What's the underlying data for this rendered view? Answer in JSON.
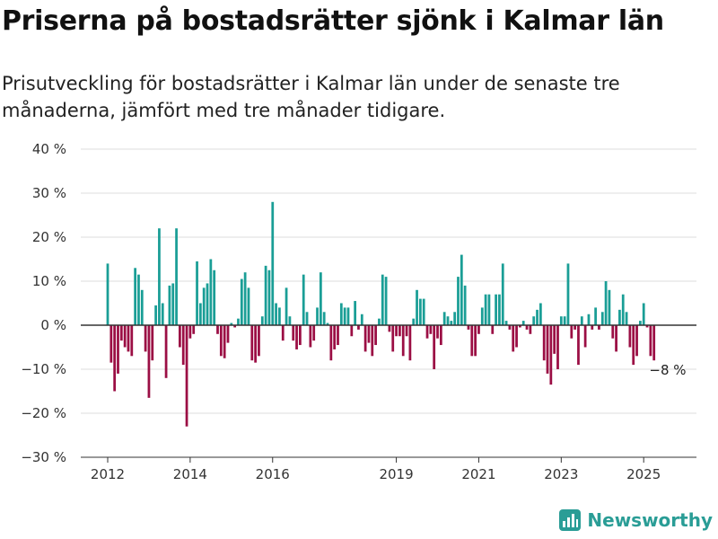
{
  "title": "Priserna på bostadsrätter sjönk i Kalmar län",
  "subtitle": "Prisutveckling för bostadsrätter i Kalmar län under de senaste tre månaderna, jämfört med tre månader tidigare.",
  "logo": {
    "text": "Newsworthy",
    "icon": "newsworthy-logo-icon"
  },
  "colors": {
    "positive": "#1a9e96",
    "negative": "#9b0e44",
    "grid": "#dddddd",
    "axis": "#333333"
  },
  "chart_data": {
    "type": "bar",
    "x_start": "2012-01",
    "x_end": "2025-08",
    "x_ticks": [
      "2012",
      "2014",
      "2016",
      "2019",
      "2021",
      "2023",
      "2025"
    ],
    "y_ticks": [
      "40 %",
      "30 %",
      "20 %",
      "10 %",
      "0 %",
      "−10 %",
      "−20 %",
      "−30 %"
    ],
    "ylim": [
      -30,
      40
    ],
    "grid": true,
    "annotation": {
      "text": "−8 %",
      "value": -8
    },
    "values": [
      14,
      -8.5,
      -15,
      -11,
      -3.5,
      -5,
      -6,
      -7,
      13,
      11.5,
      8,
      -6,
      -16.5,
      -8,
      4.5,
      22,
      5,
      -12,
      9,
      9.5,
      22,
      -5,
      -9,
      -23,
      -3,
      -2,
      14.5,
      5,
      8.5,
      9.5,
      15,
      12.5,
      -2,
      -7,
      -7.5,
      -4,
      0.5,
      -0.5,
      1.5,
      10.5,
      12,
      8.5,
      -8,
      -8.5,
      -7,
      2,
      13.5,
      12.5,
      28,
      5,
      4,
      -3.5,
      8.5,
      2,
      -3.5,
      -5.5,
      -4.5,
      11.5,
      3,
      -5,
      -3.5,
      4,
      12,
      3,
      0.5,
      -8,
      -5.5,
      -4.5,
      5,
      4,
      4,
      -2.5,
      5.5,
      -1,
      2.5,
      -6,
      -4,
      -7,
      -4.5,
      1.5,
      11.5,
      11,
      -1.5,
      -6,
      -2.5,
      -2.5,
      -7,
      -2.5,
      -8,
      1.5,
      8,
      6,
      6,
      -3,
      -2,
      -10,
      -3,
      -4.5,
      3,
      2,
      1,
      3,
      11,
      16,
      9,
      -1,
      -7,
      -7,
      -2,
      4,
      7,
      7,
      -2,
      7,
      7,
      14,
      1,
      -1,
      -6,
      -5,
      -0.5,
      1,
      -1,
      -2,
      2,
      3.5,
      5,
      -8,
      -11,
      -13.5,
      -6.5,
      -10,
      2,
      2,
      14,
      -3,
      -1,
      -9,
      2,
      -5,
      2.5,
      -1,
      4,
      -1,
      3,
      10,
      8,
      -3,
      -6,
      3.5,
      7,
      3,
      -5,
      -9,
      -7,
      1,
      5,
      -0.5,
      -7,
      -8
    ]
  }
}
